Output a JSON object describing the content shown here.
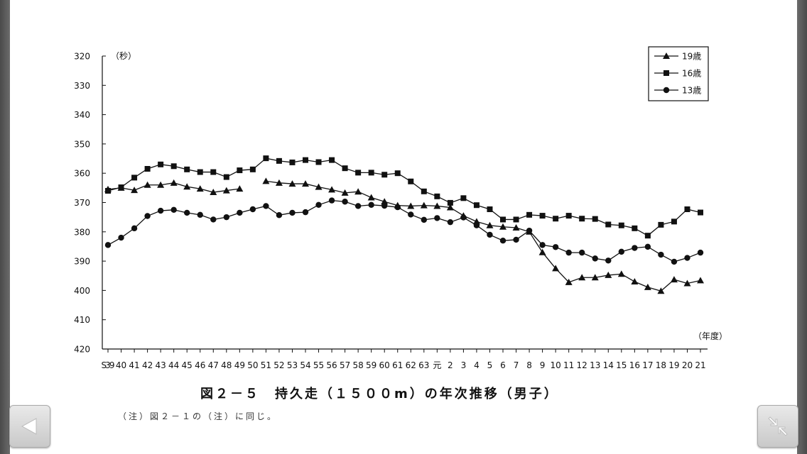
{
  "caption": "図２－５　持久走（１５００m）の年次推移（男子）",
  "note": "（注）図２－１の（注）に同じ。",
  "buttons": {
    "prev_icon": "triangle-left-icon",
    "shrink_icon": "shrink-arrows-icon"
  },
  "colors": {
    "line": "#111111",
    "background": "#ffffff",
    "frame": "#5a5a5a"
  },
  "chart_data": {
    "type": "line",
    "ylabel": "（秒）",
    "xlabel": "（年度）",
    "ylim": [
      320,
      420
    ],
    "y_inverted": true,
    "yticks": [
      320,
      330,
      340,
      350,
      360,
      370,
      380,
      390,
      400,
      410,
      420
    ],
    "legend_position": "top-right",
    "grid": false,
    "categories": [
      "S39",
      "40",
      "41",
      "42",
      "43",
      "44",
      "45",
      "46",
      "47",
      "48",
      "49",
      "50",
      "51",
      "52",
      "53",
      "54",
      "55",
      "56",
      "57",
      "58",
      "59",
      "60",
      "61",
      "62",
      "63",
      "元",
      "2",
      "3",
      "4",
      "5",
      "6",
      "7",
      "8",
      "9",
      "10",
      "11",
      "12",
      "13",
      "14",
      "15",
      "16",
      "17",
      "18",
      "19",
      "20",
      "21"
    ],
    "series": [
      {
        "name": "19歳",
        "marker": "triangle",
        "values": [
          365.5,
          365,
          365.8,
          364,
          364,
          363.3,
          364.6,
          365.3,
          366.5,
          365.9,
          365.3,
          null,
          362.7,
          363.3,
          363.6,
          363.6,
          364.7,
          365.6,
          366.7,
          366.3,
          368.3,
          369.7,
          371,
          371.2,
          371,
          371.2,
          371.7,
          374.5,
          376.5,
          377.8,
          378.3,
          378.6,
          380,
          387,
          392.5,
          397.2,
          395.6,
          395.6,
          394.8,
          394.4,
          397,
          398.9,
          400.2,
          396.3,
          397.6,
          396.6
        ]
      },
      {
        "name": "16歳",
        "marker": "square",
        "values": [
          366,
          364.8,
          361.5,
          358.5,
          357,
          357.6,
          358.7,
          359.6,
          359.6,
          361.3,
          359,
          358.7,
          354.9,
          355.8,
          356.3,
          355.5,
          356.2,
          355.5,
          358.3,
          359.8,
          359.8,
          360.5,
          360,
          362.8,
          366.2,
          367.9,
          370.1,
          368.5,
          370.9,
          372.3,
          375.8,
          375.8,
          374.2,
          374.5,
          375.5,
          374.5,
          375.5,
          375.6,
          377.5,
          377.8,
          378.8,
          381.3,
          377.6,
          376.5,
          372.3,
          373.4
        ]
      },
      {
        "name": "13歳",
        "marker": "circle",
        "values": [
          384.5,
          382,
          378.8,
          374.6,
          372.8,
          372.5,
          373.5,
          374.2,
          375.8,
          375,
          373.5,
          372.3,
          371.2,
          374.3,
          373.5,
          373.3,
          370.8,
          369.3,
          369.7,
          371.2,
          370.8,
          371.1,
          371.6,
          374.1,
          375.9,
          375.3,
          376.7,
          375.1,
          377.8,
          381,
          383,
          382.7,
          379.6,
          384.5,
          385.2,
          387.1,
          387.1,
          389.1,
          389.8,
          386.8,
          385.5,
          385.1,
          387.8,
          390.2,
          388.9,
          387.1
        ]
      }
    ]
  }
}
